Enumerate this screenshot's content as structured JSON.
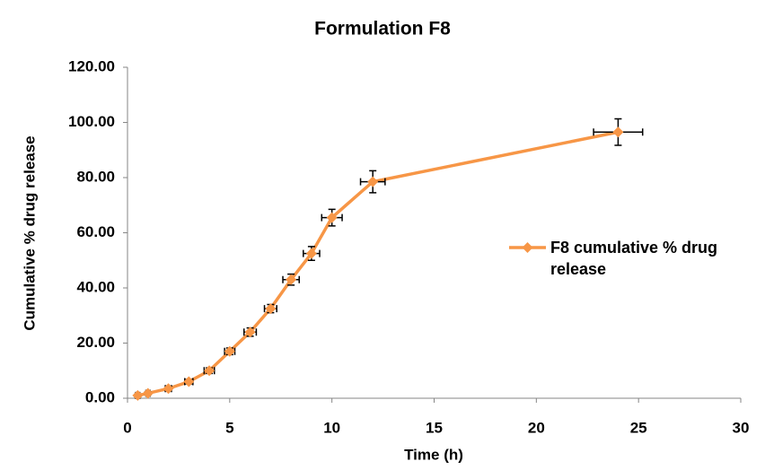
{
  "chart_data": {
    "type": "line",
    "title": "Formulation F8",
    "x_label": "Time (h)",
    "y_label": "Cumulative % drug release",
    "series": [
      {
        "name": "F8 cumulative % drug release",
        "color": "#f79646",
        "x": [
          0.5,
          1,
          2,
          3,
          4,
          5,
          6,
          7,
          8,
          9,
          10,
          12,
          24
        ],
        "values": [
          1.0,
          1.8,
          3.5,
          6.0,
          10.0,
          17.0,
          24.0,
          32.5,
          43.0,
          52.5,
          65.5,
          78.5,
          96.5
        ],
        "y_errors": [
          0.5,
          0.5,
          0.6,
          0.8,
          1.0,
          1.2,
          1.5,
          1.5,
          2.0,
          2.5,
          3.0,
          4.0,
          4.8
        ],
        "x_errors": [
          0.1,
          0.1,
          0.15,
          0.2,
          0.25,
          0.25,
          0.3,
          0.3,
          0.4,
          0.4,
          0.5,
          0.6,
          1.2
        ]
      }
    ],
    "xlim": [
      0,
      30
    ],
    "xticks": [
      0,
      5,
      10,
      15,
      20,
      25,
      30
    ],
    "ylim": [
      0,
      120
    ],
    "yticks": [
      {
        "value": 0,
        "label": "0.00"
      },
      {
        "value": 20,
        "label": "20.00"
      },
      {
        "value": 40,
        "label": "40.00"
      },
      {
        "value": 60,
        "label": "60.00"
      },
      {
        "value": 80,
        "label": "80.00"
      },
      {
        "value": 100,
        "label": "100.00"
      },
      {
        "value": 120,
        "label": "120.00"
      }
    ],
    "error_bar_color": "#000000",
    "axis_color": "#868686"
  }
}
